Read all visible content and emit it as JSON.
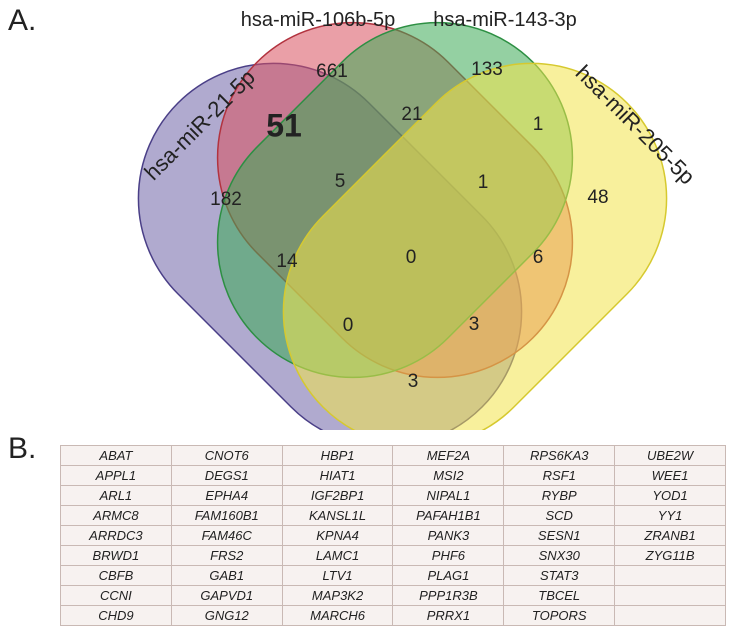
{
  "panel_a_label": "A.",
  "panel_b_label": "B.",
  "sets": [
    {
      "id": "s1",
      "name": "hsa-miR-21-5p",
      "color": "#6f64a8"
    },
    {
      "id": "s2",
      "name": "hsa-miR-106b-5p",
      "color": "#d9505e"
    },
    {
      "id": "s3",
      "name": "hsa-miR-143-3p",
      "color": "#3daa56"
    },
    {
      "id": "s4",
      "name": "hsa-miR-205-5p",
      "color": "#f2e44a"
    }
  ],
  "regions": [
    {
      "sets": "1",
      "value": "182"
    },
    {
      "sets": "2",
      "value": "661"
    },
    {
      "sets": "3",
      "value": "133"
    },
    {
      "sets": "4",
      "value": "48"
    },
    {
      "sets": "1,2",
      "value": "51",
      "emphasis": true
    },
    {
      "sets": "2,3",
      "value": "21"
    },
    {
      "sets": "3,4",
      "value": "1"
    },
    {
      "sets": "1,2,3",
      "value": "5"
    },
    {
      "sets": "2,3,4",
      "value": "1"
    },
    {
      "sets": "1,3",
      "value": "14"
    },
    {
      "sets": "1,2,3,4",
      "value": "0"
    },
    {
      "sets": "2,4",
      "value": "6"
    },
    {
      "sets": "1,3,4",
      "value": "0"
    },
    {
      "sets": "1,2,4",
      "value": "3"
    },
    {
      "sets": "1,4",
      "value": "3"
    }
  ],
  "gene_table": [
    [
      "ABAT",
      "CNOT6",
      "HBP1",
      "MEF2A",
      "RPS6KA3",
      "UBE2W"
    ],
    [
      "APPL1",
      "DEGS1",
      "HIAT1",
      "MSI2",
      "RSF1",
      "WEE1"
    ],
    [
      "ARL1",
      "EPHA4",
      "IGF2BP1",
      "NIPAL1",
      "RYBP",
      "YOD1"
    ],
    [
      "ARMC8",
      "FAM160B1",
      "KANSL1L",
      "PAFAH1B1",
      "SCD",
      "YY1"
    ],
    [
      "ARRDC3",
      "FAM46C",
      "KPNA4",
      "PANK3",
      "SESN1",
      "ZRANB1"
    ],
    [
      "BRWD1",
      "FRS2",
      "LAMC1",
      "PHF6",
      "SNX30",
      "ZYG11B"
    ],
    [
      "CBFB",
      "GAB1",
      "LTV1",
      "PLAG1",
      "STAT3",
      ""
    ],
    [
      "CCNI",
      "GAPVD1",
      "MAP3K2",
      "PPP1R3B",
      "TBCEL",
      ""
    ],
    [
      "CHD9",
      "GNG12",
      "MARCH6",
      "PRRX1",
      "TOPORS",
      ""
    ]
  ]
}
